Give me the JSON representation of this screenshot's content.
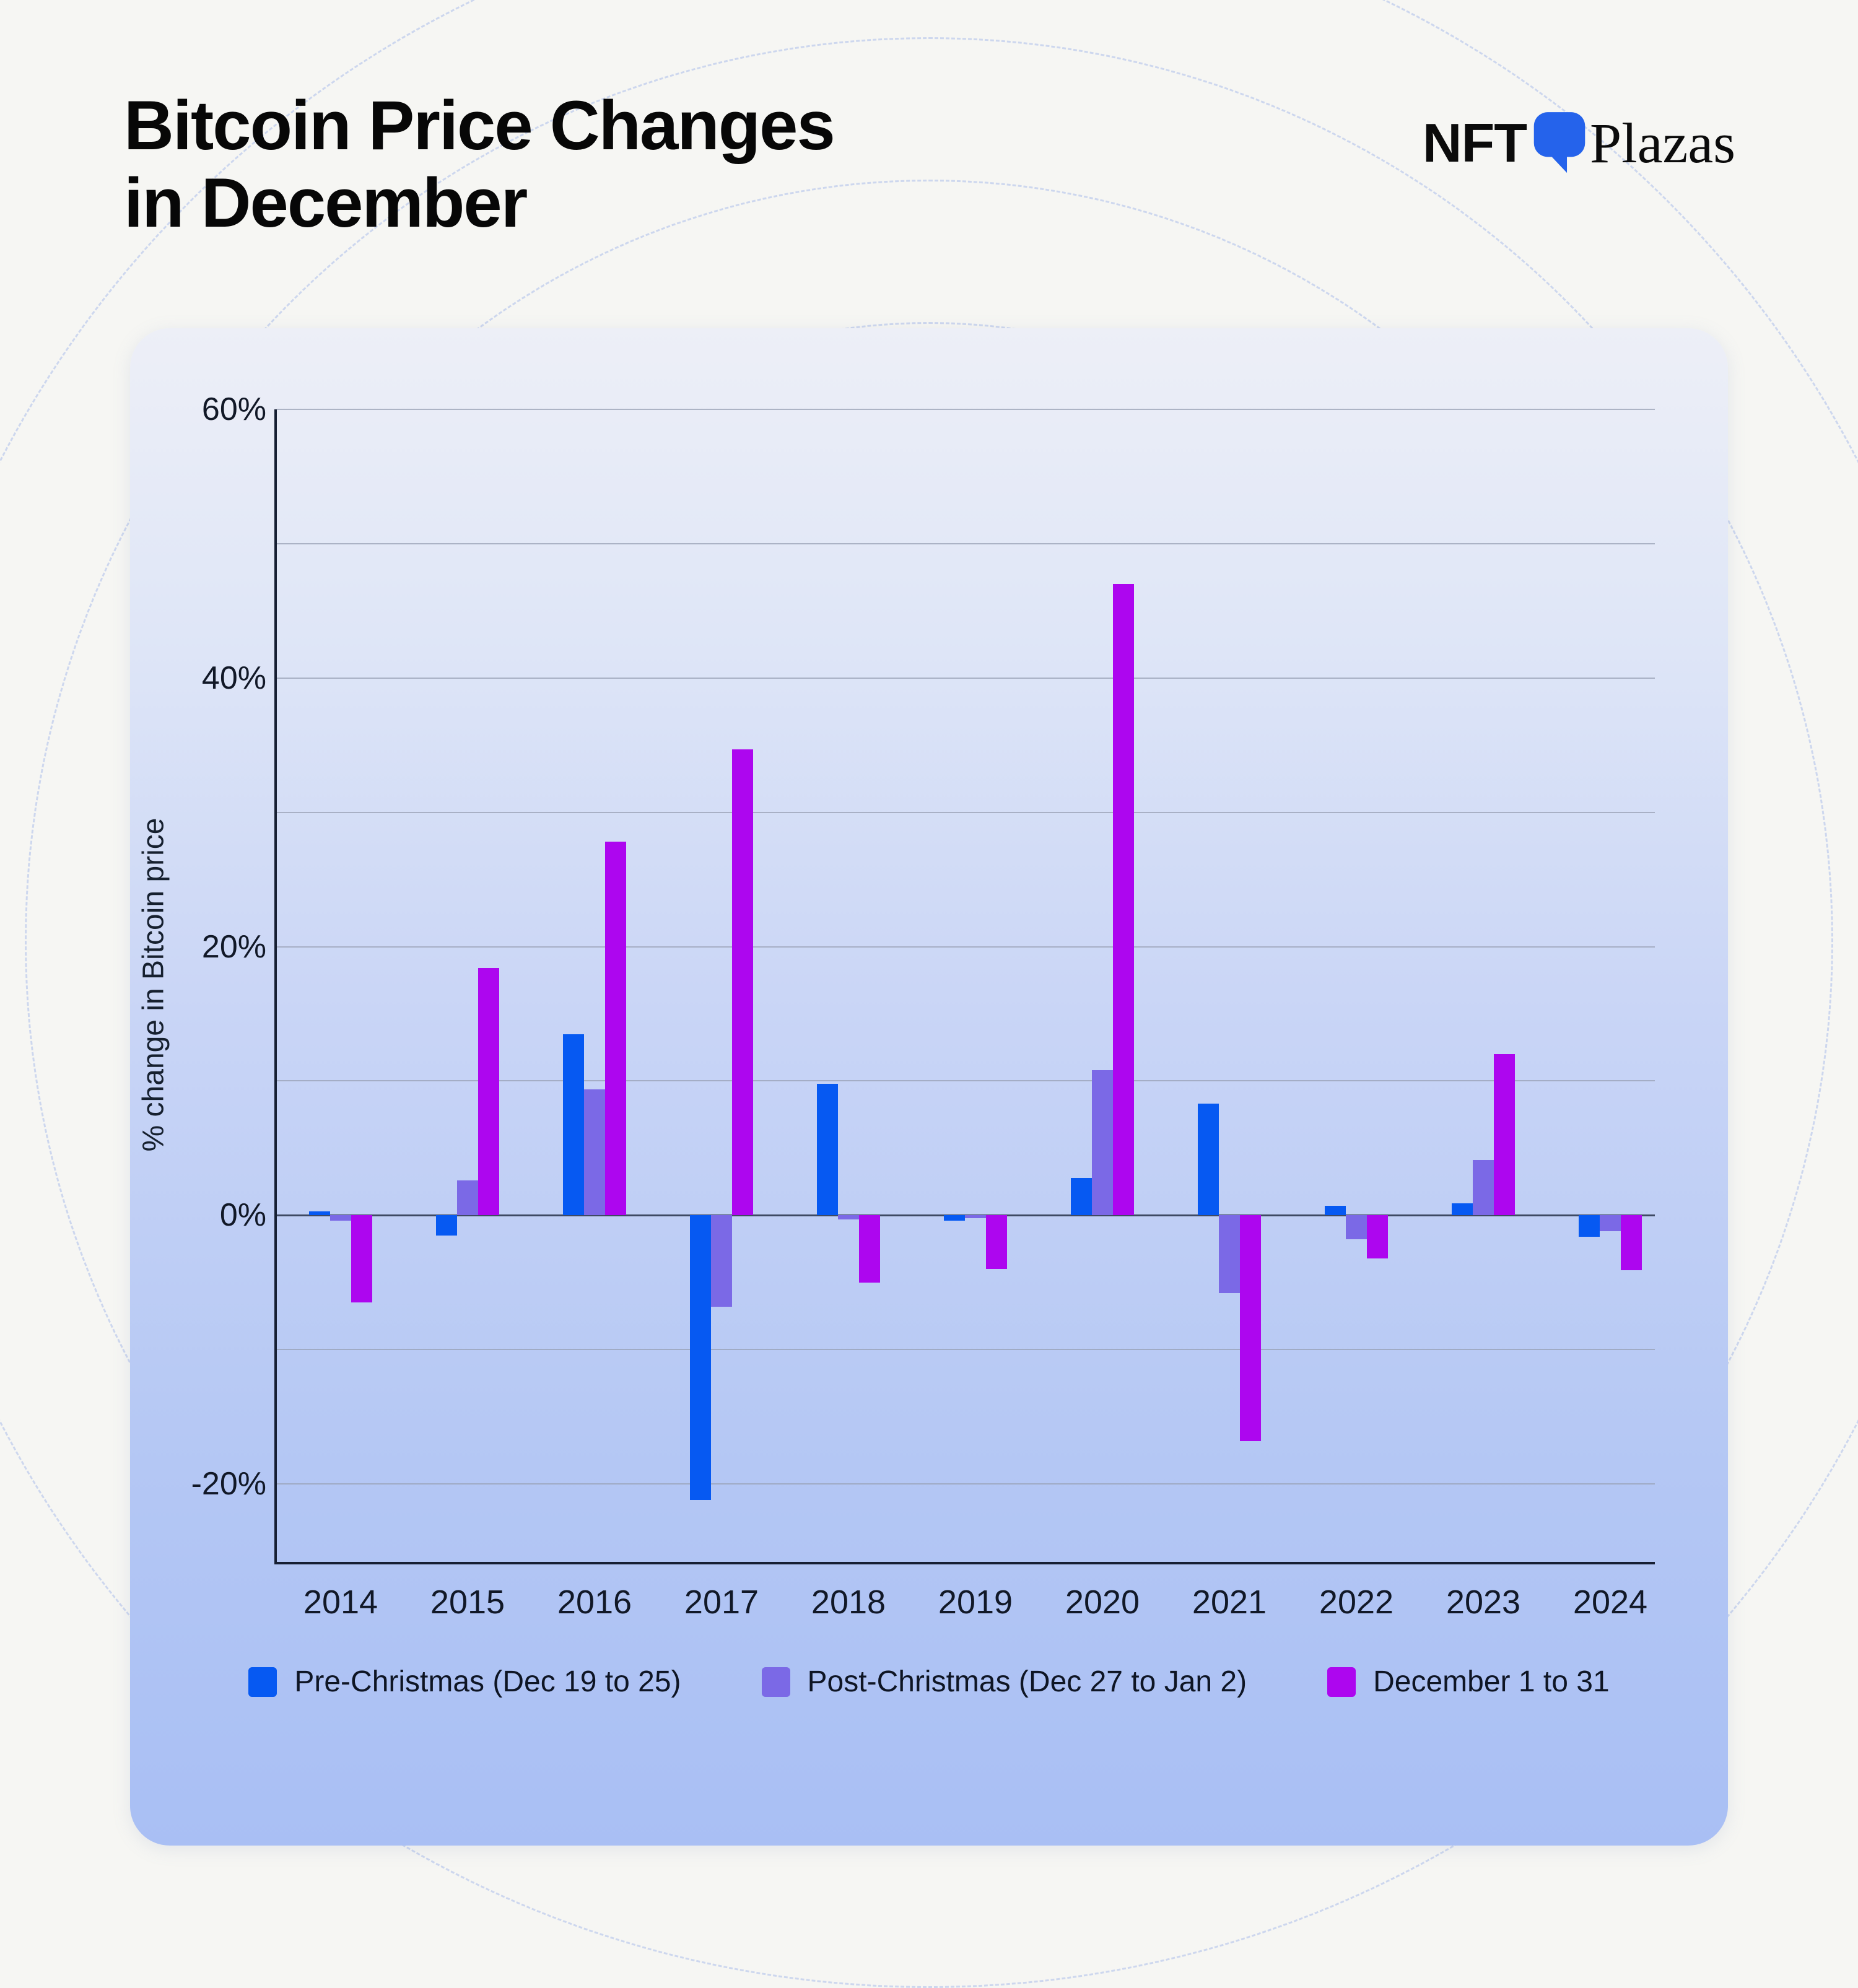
{
  "page": {
    "title_line1": "Bitcoin Price Changes",
    "title_line2": "in December"
  },
  "logo": {
    "nft_text": "NFT",
    "plazas_text": "Plazas",
    "glyph_icon": "p-bubble-icon",
    "glyph_color": "#2563EB"
  },
  "chart_data": {
    "type": "bar",
    "title": "Bitcoin Price Changes in December",
    "categories": [
      "2014",
      "2015",
      "2016",
      "2017",
      "2018",
      "2019",
      "2020",
      "2021",
      "2022",
      "2023",
      "2024"
    ],
    "series": [
      {
        "name": "Pre-Christmas (Dec 19 to 25)",
        "color": "#0659F2",
        "values": [
          0.3,
          -1.5,
          13.5,
          -21.2,
          9.8,
          -0.4,
          2.8,
          8.3,
          0.7,
          0.9,
          -1.6
        ]
      },
      {
        "name": "Post-Christmas (Dec 27 to Jan 2)",
        "color": "#7B69E6",
        "values": [
          -0.4,
          2.6,
          9.4,
          -6.8,
          -0.3,
          -0.2,
          10.8,
          -5.8,
          -1.8,
          4.1,
          -1.2
        ]
      },
      {
        "name": "December 1 to 31",
        "color": "#AD06EF",
        "values": [
          -6.5,
          18.4,
          27.8,
          34.7,
          -5.0,
          -4.0,
          47.0,
          -16.8,
          -3.2,
          12.0,
          -4.1
        ]
      }
    ],
    "xlabel": "",
    "ylabel": "% change in Bitcoin price",
    "ylim": [
      -25.8,
      60
    ],
    "yticks_labeled": [
      "60%",
      "40%",
      "20%",
      "0%",
      "-20%"
    ],
    "ytick_values": [
      60,
      40,
      20,
      0,
      -20
    ],
    "gridline_values": [
      60,
      50,
      40,
      30,
      20,
      10,
      0,
      -10,
      -20
    ],
    "grid": true,
    "legend_position": "bottom"
  }
}
